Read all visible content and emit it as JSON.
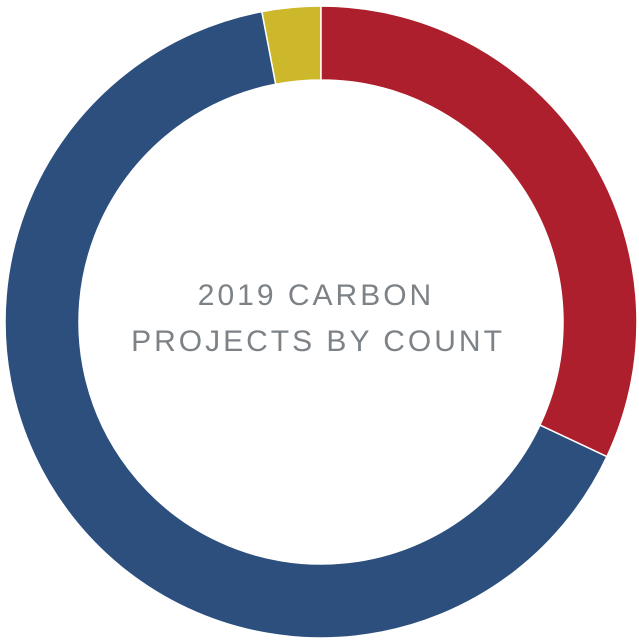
{
  "chart_data": {
    "type": "donut",
    "title": [
      "2019 CARBON",
      "PROJECTS BY COUNT"
    ],
    "values": [
      32,
      65,
      3
    ],
    "colors": [
      "#ad1f2d",
      "#2c4f7e",
      "#cdb82c"
    ]
  }
}
